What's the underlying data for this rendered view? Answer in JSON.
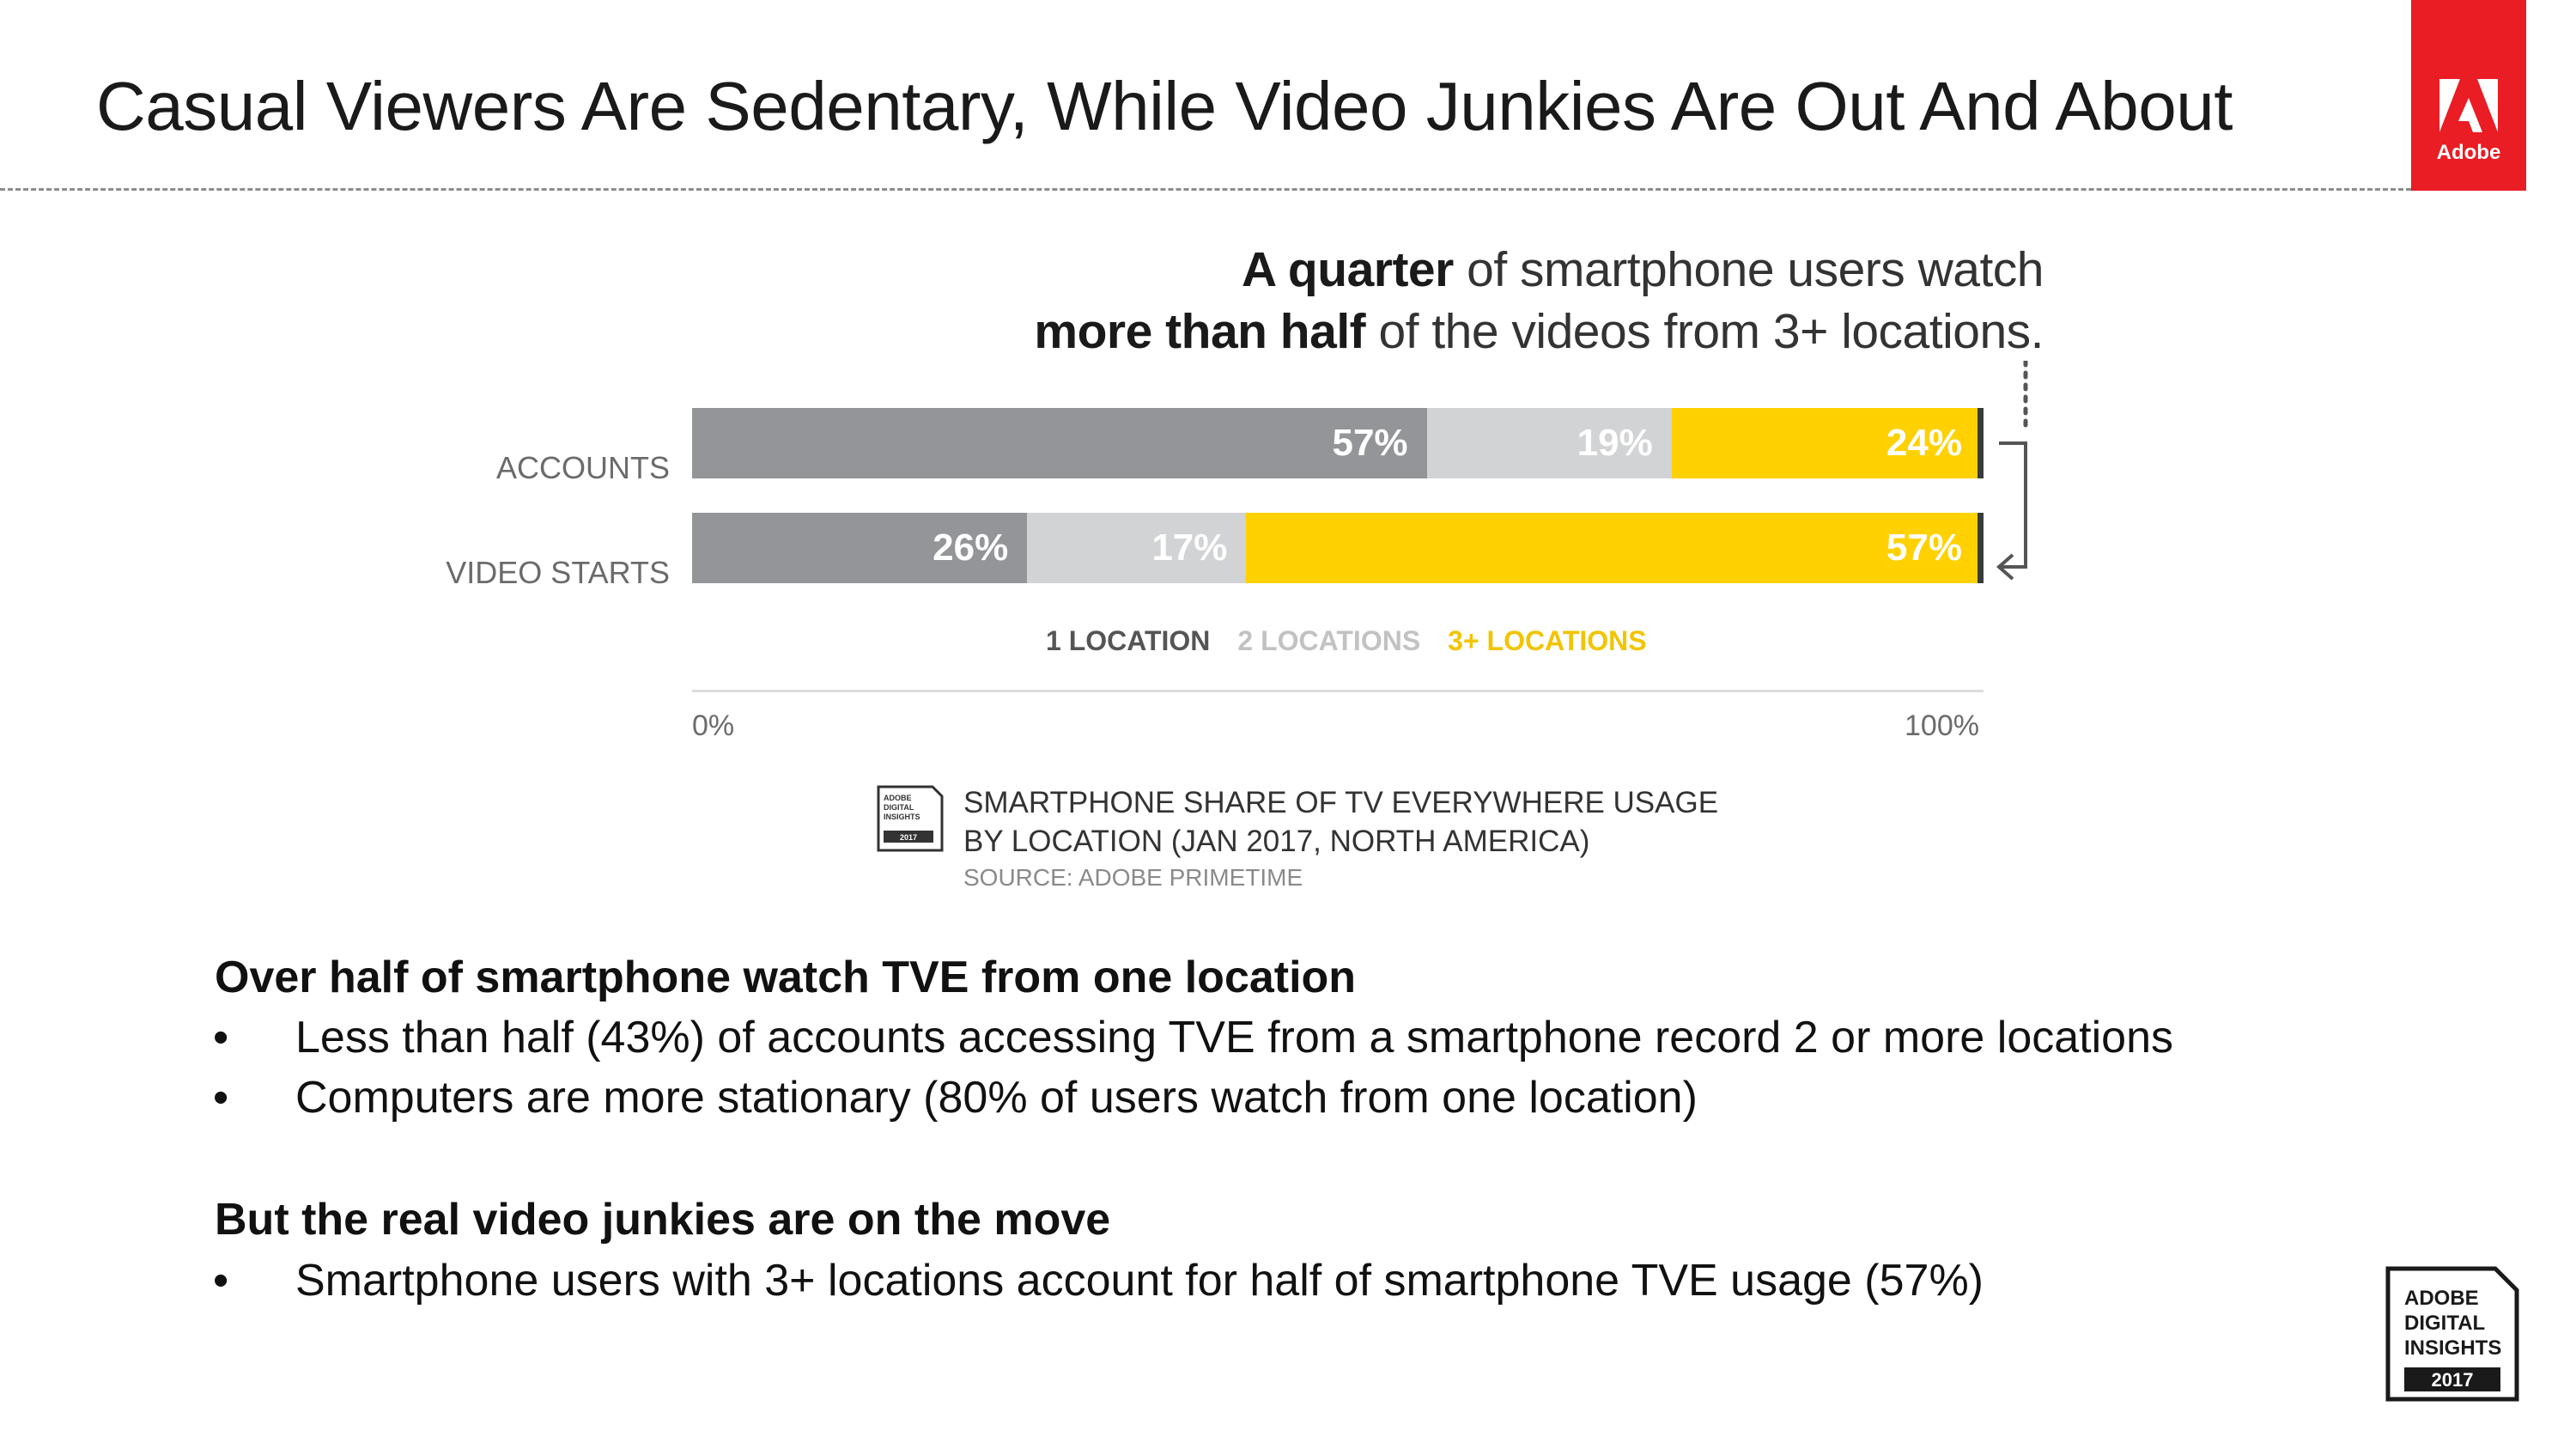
{
  "slide": {
    "title": "Casual Viewers Are Sedentary, While Video Junkies Are Out And About",
    "logo_text": "Adobe",
    "logo_color": "#ea1c24"
  },
  "headline": {
    "line1_bold": "A quarter",
    "line1_rest": " of smartphone users watch",
    "line2_bold": "more than half",
    "line2_rest": " of the videos from 3+ locations."
  },
  "chart_data": {
    "type": "bar",
    "orientation": "horizontal",
    "stacked": true,
    "categories": [
      "ACCOUNTS",
      "VIDEO STARTS"
    ],
    "series": [
      {
        "name": "1 LOCATION",
        "values": [
          57,
          26
        ],
        "color": "#939598"
      },
      {
        "name": "2 LOCATIONS",
        "values": [
          19,
          17
        ],
        "color": "#d1d3d4"
      },
      {
        "name": "3+ LOCATIONS",
        "values": [
          24,
          57
        ],
        "color": "#ffd100"
      }
    ],
    "value_labels": [
      [
        "57%",
        "19%",
        "24%"
      ],
      [
        "26%",
        "17%",
        "57%"
      ]
    ],
    "xlim": [
      0,
      100
    ],
    "x_tick_labels": [
      "0%",
      "100%"
    ],
    "legend_placement": "bottom",
    "grid": false
  },
  "source_note": {
    "line1": "SMARTPHONE SHARE OF TV EVERYWHERE USAGE",
    "line2": "BY LOCATION (JAN 2017, NORTH AMERICA)",
    "source": "SOURCE: ADOBE PRIMETIME",
    "icon_lines": [
      "ADOBE",
      "DIGITAL",
      "INSIGHTS",
      "2017"
    ]
  },
  "findings": [
    {
      "heading": "Over half of smartphone watch TVE from one location",
      "bullets": [
        "Less than half (43%) of accounts accessing TVE from a smartphone record 2 or more locations",
        "Computers are more stationary (80% of users watch from one location)"
      ]
    },
    {
      "heading": "But the real video junkies are on the move",
      "bullets": [
        "Smartphone users with 3+ locations account for half of smartphone TVE usage (57%)"
      ]
    }
  ],
  "bullet_char": "•",
  "badge": {
    "lines": [
      "ADOBE",
      "DIGITAL",
      "INSIGHTS"
    ],
    "year": "2017"
  }
}
